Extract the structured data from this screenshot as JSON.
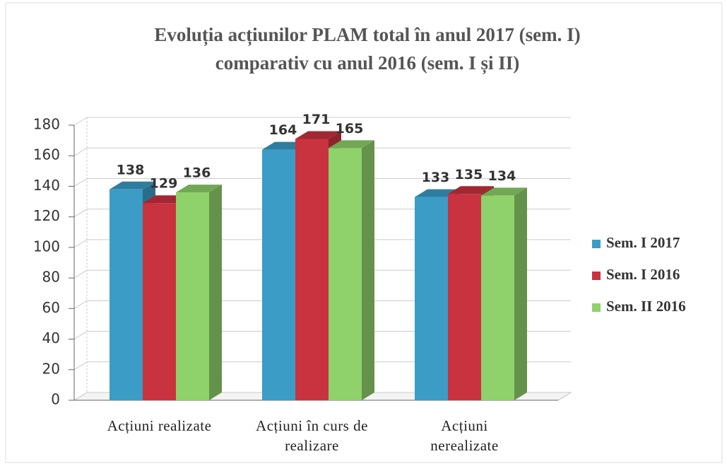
{
  "chart_data": {
    "type": "bar3d",
    "title": [
      "Evoluția acțiunilor PLAM total în anul 2017 (sem. I)",
      "comparativ cu anul 2016 (sem. I și II)"
    ],
    "categories": [
      "Acțiuni realizate",
      "Acțiuni în curs de realizare",
      "Acțiuni nerealizate"
    ],
    "series": [
      {
        "name": "Sem. I 2017",
        "color": "#3b9cc6",
        "values": [
          138,
          164,
          133
        ]
      },
      {
        "name": "Sem. I 2016",
        "color": "#c9323f",
        "values": [
          129,
          171,
          135
        ]
      },
      {
        "name": "Sem. II 2016",
        "color": "#8fd16a",
        "values": [
          136,
          165,
          134
        ]
      }
    ],
    "ylim": [
      0,
      180
    ],
    "yticks": [
      0,
      20,
      40,
      60,
      80,
      100,
      120,
      140,
      160,
      180
    ],
    "grid": true,
    "legend": "right"
  }
}
